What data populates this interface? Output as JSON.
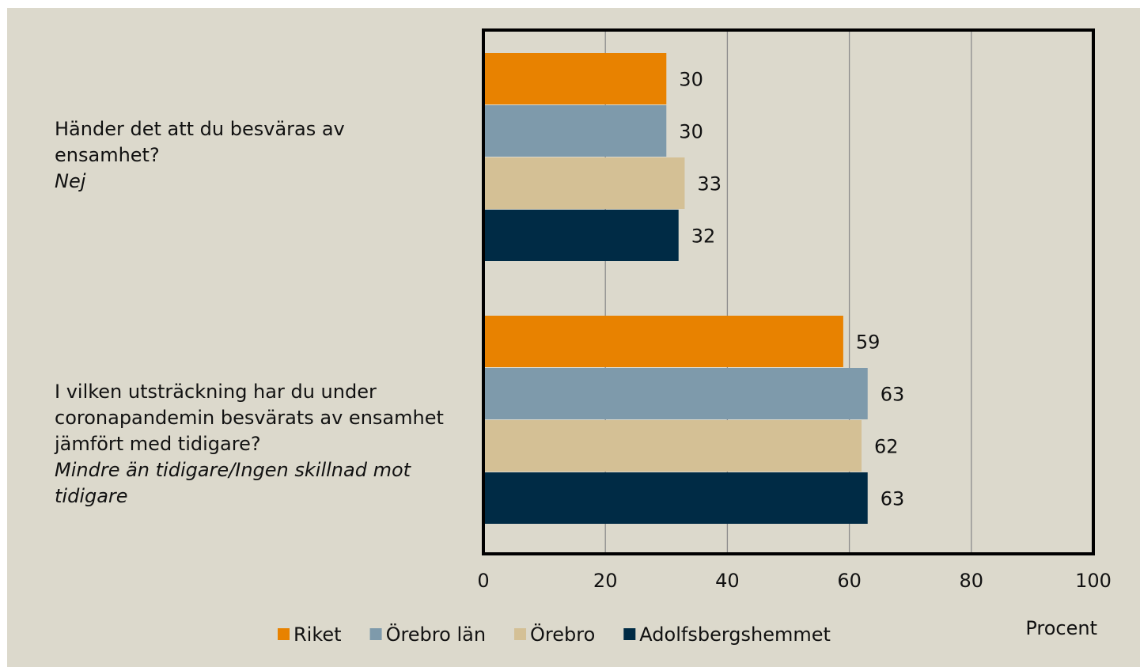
{
  "chart_data": {
    "type": "bar",
    "orientation": "horizontal",
    "categories": [
      {
        "question": "Händer det att du besväras av ensamhet?",
        "answer": "Nej"
      },
      {
        "question": "I vilken utsträckning har du under coronapandemin besvärats av ensamhet jämfört med tidigare?",
        "answer": "Mindre än tidigare/Ingen skillnad mot tidigare"
      }
    ],
    "series": [
      {
        "name": "Riket",
        "color": "#e88200",
        "values": [
          30,
          59
        ]
      },
      {
        "name": "Örebro län",
        "color": "#7e9aab",
        "values": [
          30,
          63
        ]
      },
      {
        "name": "Örebro",
        "color": "#d4c095",
        "values": [
          33,
          62
        ]
      },
      {
        "name": "Adolfsbergshemmet",
        "color": "#002b45",
        "values": [
          32,
          63
        ]
      }
    ],
    "xlim": [
      0,
      100
    ],
    "xticks": [
      "0",
      "20",
      "40",
      "60",
      "80",
      "100"
    ],
    "xlabel": "Procent",
    "grid": true,
    "data_labels": true,
    "legend_position": "bottom"
  }
}
